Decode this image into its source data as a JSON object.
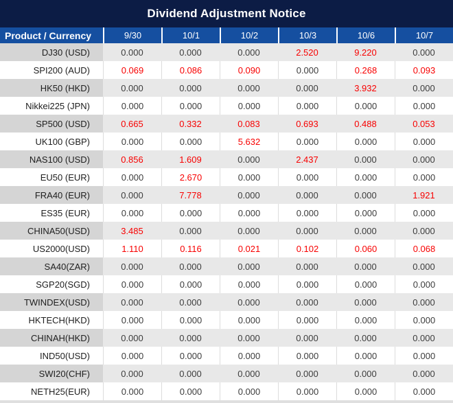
{
  "title": "Dividend Adjustment Notice",
  "table": {
    "product_header": "Product / Currency",
    "date_columns": [
      "9/30",
      "10/1",
      "10/2",
      "10/3",
      "10/6",
      "10/7"
    ],
    "rows": [
      {
        "product": "DJ30 (USD)",
        "values": [
          "0.000",
          "0.000",
          "0.000",
          "2.520",
          "9.220",
          "0.000"
        ],
        "red": [
          false,
          false,
          false,
          true,
          true,
          false
        ]
      },
      {
        "product": "SPI200 (AUD)",
        "values": [
          "0.069",
          "0.086",
          "0.090",
          "0.000",
          "0.268",
          "0.093"
        ],
        "red": [
          true,
          true,
          true,
          false,
          true,
          true
        ]
      },
      {
        "product": "HK50 (HKD)",
        "values": [
          "0.000",
          "0.000",
          "0.000",
          "0.000",
          "3.932",
          "0.000"
        ],
        "red": [
          false,
          false,
          false,
          false,
          true,
          false
        ]
      },
      {
        "product": "Nikkei225 (JPN)",
        "values": [
          "0.000",
          "0.000",
          "0.000",
          "0.000",
          "0.000",
          "0.000"
        ],
        "red": [
          false,
          false,
          false,
          false,
          false,
          false
        ]
      },
      {
        "product": "SP500 (USD)",
        "values": [
          "0.665",
          "0.332",
          "0.083",
          "0.693",
          "0.488",
          "0.053"
        ],
        "red": [
          true,
          true,
          true,
          true,
          true,
          true
        ]
      },
      {
        "product": "UK100 (GBP)",
        "values": [
          "0.000",
          "0.000",
          "5.632",
          "0.000",
          "0.000",
          "0.000"
        ],
        "red": [
          false,
          false,
          true,
          false,
          false,
          false
        ]
      },
      {
        "product": "NAS100 (USD)",
        "values": [
          "0.856",
          "1.609",
          "0.000",
          "2.437",
          "0.000",
          "0.000"
        ],
        "red": [
          true,
          true,
          false,
          true,
          false,
          false
        ]
      },
      {
        "product": "EU50 (EUR)",
        "values": [
          "0.000",
          "2.670",
          "0.000",
          "0.000",
          "0.000",
          "0.000"
        ],
        "red": [
          false,
          true,
          false,
          false,
          false,
          false
        ]
      },
      {
        "product": "FRA40 (EUR)",
        "values": [
          "0.000",
          "7.778",
          "0.000",
          "0.000",
          "0.000",
          "1.921"
        ],
        "red": [
          false,
          true,
          false,
          false,
          false,
          true
        ]
      },
      {
        "product": "ES35 (EUR)",
        "values": [
          "0.000",
          "0.000",
          "0.000",
          "0.000",
          "0.000",
          "0.000"
        ],
        "red": [
          false,
          false,
          false,
          false,
          false,
          false
        ]
      },
      {
        "product": "CHINA50(USD)",
        "values": [
          "3.485",
          "0.000",
          "0.000",
          "0.000",
          "0.000",
          "0.000"
        ],
        "red": [
          true,
          false,
          false,
          false,
          false,
          false
        ]
      },
      {
        "product": "US2000(USD)",
        "values": [
          "1.110",
          "0.116",
          "0.021",
          "0.102",
          "0.060",
          "0.068"
        ],
        "red": [
          true,
          true,
          true,
          true,
          true,
          true
        ]
      },
      {
        "product": "SA40(ZAR)",
        "values": [
          "0.000",
          "0.000",
          "0.000",
          "0.000",
          "0.000",
          "0.000"
        ],
        "red": [
          false,
          false,
          false,
          false,
          false,
          false
        ]
      },
      {
        "product": "SGP20(SGD)",
        "values": [
          "0.000",
          "0.000",
          "0.000",
          "0.000",
          "0.000",
          "0.000"
        ],
        "red": [
          false,
          false,
          false,
          false,
          false,
          false
        ]
      },
      {
        "product": "TWINDEX(USD)",
        "values": [
          "0.000",
          "0.000",
          "0.000",
          "0.000",
          "0.000",
          "0.000"
        ],
        "red": [
          false,
          false,
          false,
          false,
          false,
          false
        ]
      },
      {
        "product": "HKTECH(HKD)",
        "values": [
          "0.000",
          "0.000",
          "0.000",
          "0.000",
          "0.000",
          "0.000"
        ],
        "red": [
          false,
          false,
          false,
          false,
          false,
          false
        ]
      },
      {
        "product": "CHINAH(HKD)",
        "values": [
          "0.000",
          "0.000",
          "0.000",
          "0.000",
          "0.000",
          "0.000"
        ],
        "red": [
          false,
          false,
          false,
          false,
          false,
          false
        ]
      },
      {
        "product": "IND50(USD)",
        "values": [
          "0.000",
          "0.000",
          "0.000",
          "0.000",
          "0.000",
          "0.000"
        ],
        "red": [
          false,
          false,
          false,
          false,
          false,
          false
        ]
      },
      {
        "product": "SWI20(CHF)",
        "values": [
          "0.000",
          "0.000",
          "0.000",
          "0.000",
          "0.000",
          "0.000"
        ],
        "red": [
          false,
          false,
          false,
          false,
          false,
          false
        ]
      },
      {
        "product": "NETH25(EUR)",
        "values": [
          "0.000",
          "0.000",
          "0.000",
          "0.000",
          "0.000",
          "0.000"
        ],
        "red": [
          false,
          false,
          false,
          false,
          false,
          false
        ]
      }
    ]
  },
  "colors": {
    "title_bg": "#0C1C45",
    "header_bg": "#154FA0",
    "gray_row_product": "#D5D5D5",
    "gray_row_value": "#E8E8E8",
    "white_row": "#FFFFFF",
    "value_red": "#F80000",
    "value_text": "#3C3C3C"
  }
}
